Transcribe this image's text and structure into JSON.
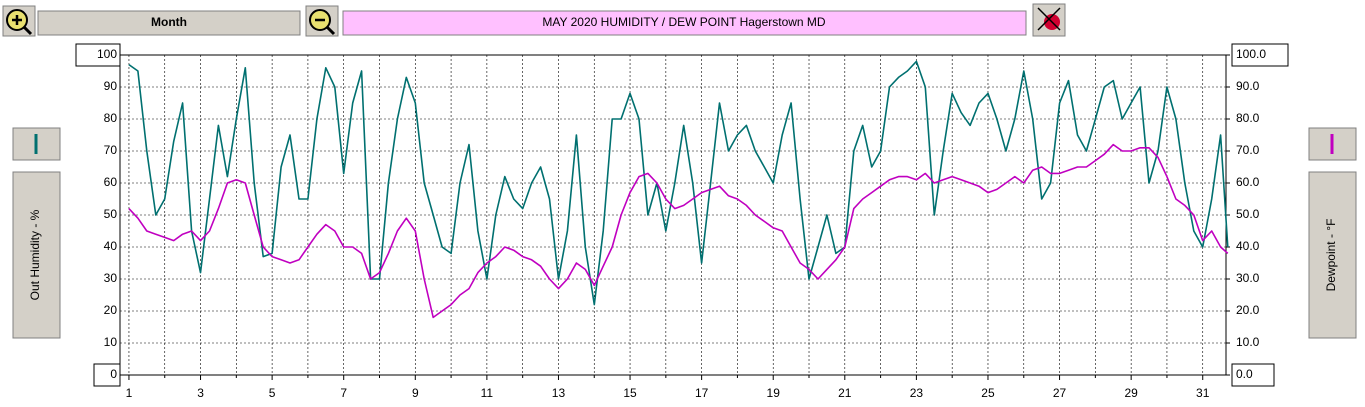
{
  "ui": {
    "period_button": "Month"
  },
  "chart_data": {
    "type": "line",
    "title": "MAY  2020   HUMIDITY / DEW POINT  Hagerstown MD",
    "ylabel": "Out Humidity - %",
    "y2label": "Dewpoint - °F",
    "x": [
      1,
      1.25,
      1.5,
      1.75,
      2,
      2.25,
      2.5,
      2.75,
      3,
      3.25,
      3.5,
      3.75,
      4,
      4.25,
      4.5,
      4.75,
      5,
      5.25,
      5.5,
      5.75,
      6,
      6.25,
      6.5,
      6.75,
      7,
      7.25,
      7.5,
      7.75,
      8,
      8.25,
      8.5,
      8.75,
      9,
      9.25,
      9.5,
      9.75,
      10,
      10.25,
      10.5,
      10.75,
      11,
      11.25,
      11.5,
      11.75,
      12,
      12.25,
      12.5,
      12.75,
      13,
      13.25,
      13.5,
      13.75,
      14,
      14.25,
      14.5,
      14.75,
      15,
      15.25,
      15.5,
      15.75,
      16,
      16.25,
      16.5,
      16.75,
      17,
      17.25,
      17.5,
      17.75,
      18,
      18.25,
      18.5,
      18.75,
      19,
      19.25,
      19.5,
      19.75,
      20,
      20.25,
      20.5,
      20.75,
      21,
      21.25,
      21.5,
      21.75,
      22,
      22.25,
      22.5,
      22.75,
      23,
      23.25,
      23.5,
      23.75,
      24,
      24.25,
      24.5,
      24.75,
      25,
      25.25,
      25.5,
      25.75,
      26,
      26.25,
      26.5,
      26.75,
      27,
      27.25,
      27.5,
      27.75,
      28,
      28.25,
      28.5,
      28.75,
      29,
      29.25,
      29.5,
      29.75,
      30,
      30.25,
      30.5,
      30.75,
      31,
      31.25,
      31.5,
      31.7
    ],
    "series": [
      {
        "color": "#007070",
        "axis": "y",
        "values": [
          97,
          95,
          70,
          50,
          55,
          73,
          85,
          45,
          32,
          55,
          78,
          62,
          80,
          96,
          60,
          37,
          38,
          65,
          75,
          55,
          55,
          80,
          96,
          90,
          63,
          85,
          95,
          30,
          30,
          60,
          80,
          93,
          85,
          60,
          50,
          40,
          38,
          60,
          72,
          45,
          30,
          50,
          62,
          55,
          52,
          60,
          65,
          55,
          30,
          45,
          75,
          40,
          22,
          45,
          80,
          80,
          88,
          80,
          50,
          60,
          45,
          60,
          78,
          60,
          35,
          60,
          85,
          70,
          75,
          78,
          70,
          65,
          60,
          75,
          85,
          55,
          30,
          40,
          50,
          38,
          40,
          70,
          78,
          65,
          70,
          90,
          93,
          95,
          98,
          90,
          50,
          70,
          88,
          82,
          78,
          85,
          88,
          80,
          70,
          80,
          95,
          80,
          55,
          60,
          85,
          92,
          75,
          70,
          80,
          90,
          92,
          80,
          85,
          90,
          60,
          70,
          90,
          80,
          60,
          45,
          40,
          55,
          75,
          40
        ]
      },
      {
        "color": "#c000c0",
        "axis": "y2",
        "values": [
          52,
          49,
          45,
          44,
          43,
          42,
          44,
          45,
          42,
          45,
          52,
          60,
          61,
          60,
          50,
          40,
          37,
          36,
          35,
          36,
          40,
          44,
          47,
          45,
          40,
          40,
          38,
          30,
          32,
          38,
          45,
          49,
          45,
          30,
          18,
          20,
          22,
          25,
          27,
          32,
          35,
          37,
          40,
          39,
          37,
          36,
          34,
          30,
          27,
          30,
          35,
          33,
          28,
          34,
          40,
          50,
          57,
          62,
          63,
          60,
          55,
          52,
          53,
          55,
          57,
          58,
          59,
          56,
          55,
          53,
          50,
          48,
          46,
          45,
          40,
          35,
          33,
          30,
          33,
          36,
          40,
          52,
          55,
          57,
          59,
          61,
          62,
          62,
          61,
          63,
          60,
          61,
          62,
          61,
          60,
          59,
          57,
          58,
          60,
          62,
          60,
          64,
          65,
          63,
          63,
          64,
          65,
          65,
          67,
          69,
          72,
          70,
          70,
          71,
          71,
          68,
          62,
          55,
          53,
          50,
          42,
          45,
          40,
          38
        ]
      }
    ],
    "xlim": [
      0.75,
      31.65
    ],
    "xticks": [
      1,
      3,
      5,
      7,
      9,
      11,
      13,
      15,
      17,
      19,
      21,
      23,
      25,
      27,
      29,
      31
    ],
    "x_minor_ticks": [
      2,
      4,
      6,
      8,
      10,
      12,
      14,
      16,
      18,
      20,
      22,
      24,
      26,
      28,
      30
    ],
    "ylim": [
      0,
      100
    ],
    "yticks": [
      0,
      10,
      20,
      30,
      40,
      50,
      60,
      70,
      80,
      90,
      100
    ],
    "y2lim": [
      0,
      100
    ],
    "y2ticks": [
      {
        "value": 0,
        "label": "0.0"
      },
      {
        "value": 10,
        "label": "10.0"
      },
      {
        "value": 20,
        "label": "20.0"
      },
      {
        "value": 30,
        "label": "30.0"
      },
      {
        "value": 40,
        "label": "40.0"
      },
      {
        "value": 50,
        "label": "50.0"
      },
      {
        "value": 60,
        "label": "60.0"
      },
      {
        "value": 70,
        "label": "70.0"
      },
      {
        "value": 80,
        "label": "80.0"
      },
      {
        "value": 90,
        "label": "90.0"
      },
      {
        "value": 100,
        "label": "100.0"
      }
    ],
    "grid": true
  }
}
